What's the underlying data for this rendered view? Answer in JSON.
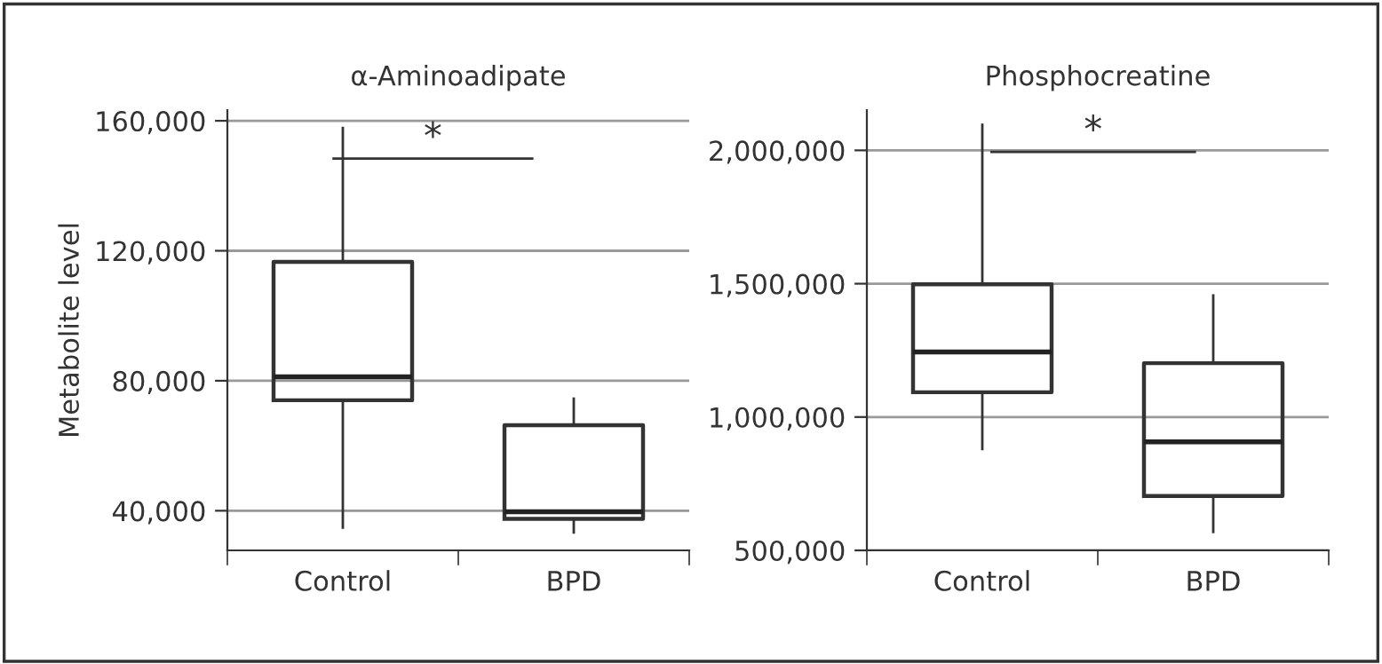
{
  "chart_data": [
    {
      "type": "box",
      "title": "α-Aminoadipate",
      "ylabel": "Metabolite level",
      "categories": [
        "Control",
        "BPD"
      ],
      "ylim": [
        27800,
        163300
      ],
      "yticks": [
        {
          "value": 40000,
          "label": "40,000"
        },
        {
          "value": 80000,
          "label": "80,000"
        },
        {
          "value": 120000,
          "label": "120,000"
        },
        {
          "value": 160000,
          "label": "160,000"
        }
      ],
      "grid": "y",
      "annotations": [
        "*"
      ],
      "boxes": [
        {
          "low": 34800,
          "q1": 74000,
          "median": 81200,
          "q3": 116600,
          "high": 157800
        },
        {
          "low": 33300,
          "q1": 37500,
          "median": 39700,
          "q3": 66300,
          "high": 74500
        }
      ]
    },
    {
      "type": "box",
      "title": "Phosphocreatine",
      "categories": [
        "Control",
        "BPD"
      ],
      "ylim": [
        500000,
        2151000
      ],
      "yticks": [
        {
          "value": 500000,
          "label": "500,000"
        },
        {
          "value": 1000000,
          "label": "1,000,000"
        },
        {
          "value": 1500000,
          "label": "1,500,000"
        },
        {
          "value": 2000000,
          "label": "2,000,000"
        }
      ],
      "grid": "y",
      "annotations": [
        "*"
      ],
      "boxes": [
        {
          "low": 880000,
          "q1": 1093000,
          "median": 1244000,
          "q3": 1498000,
          "high": 2096000
        },
        {
          "low": 569000,
          "q1": 704000,
          "median": 907000,
          "q3": 1202000,
          "high": 1456000
        }
      ]
    }
  ]
}
